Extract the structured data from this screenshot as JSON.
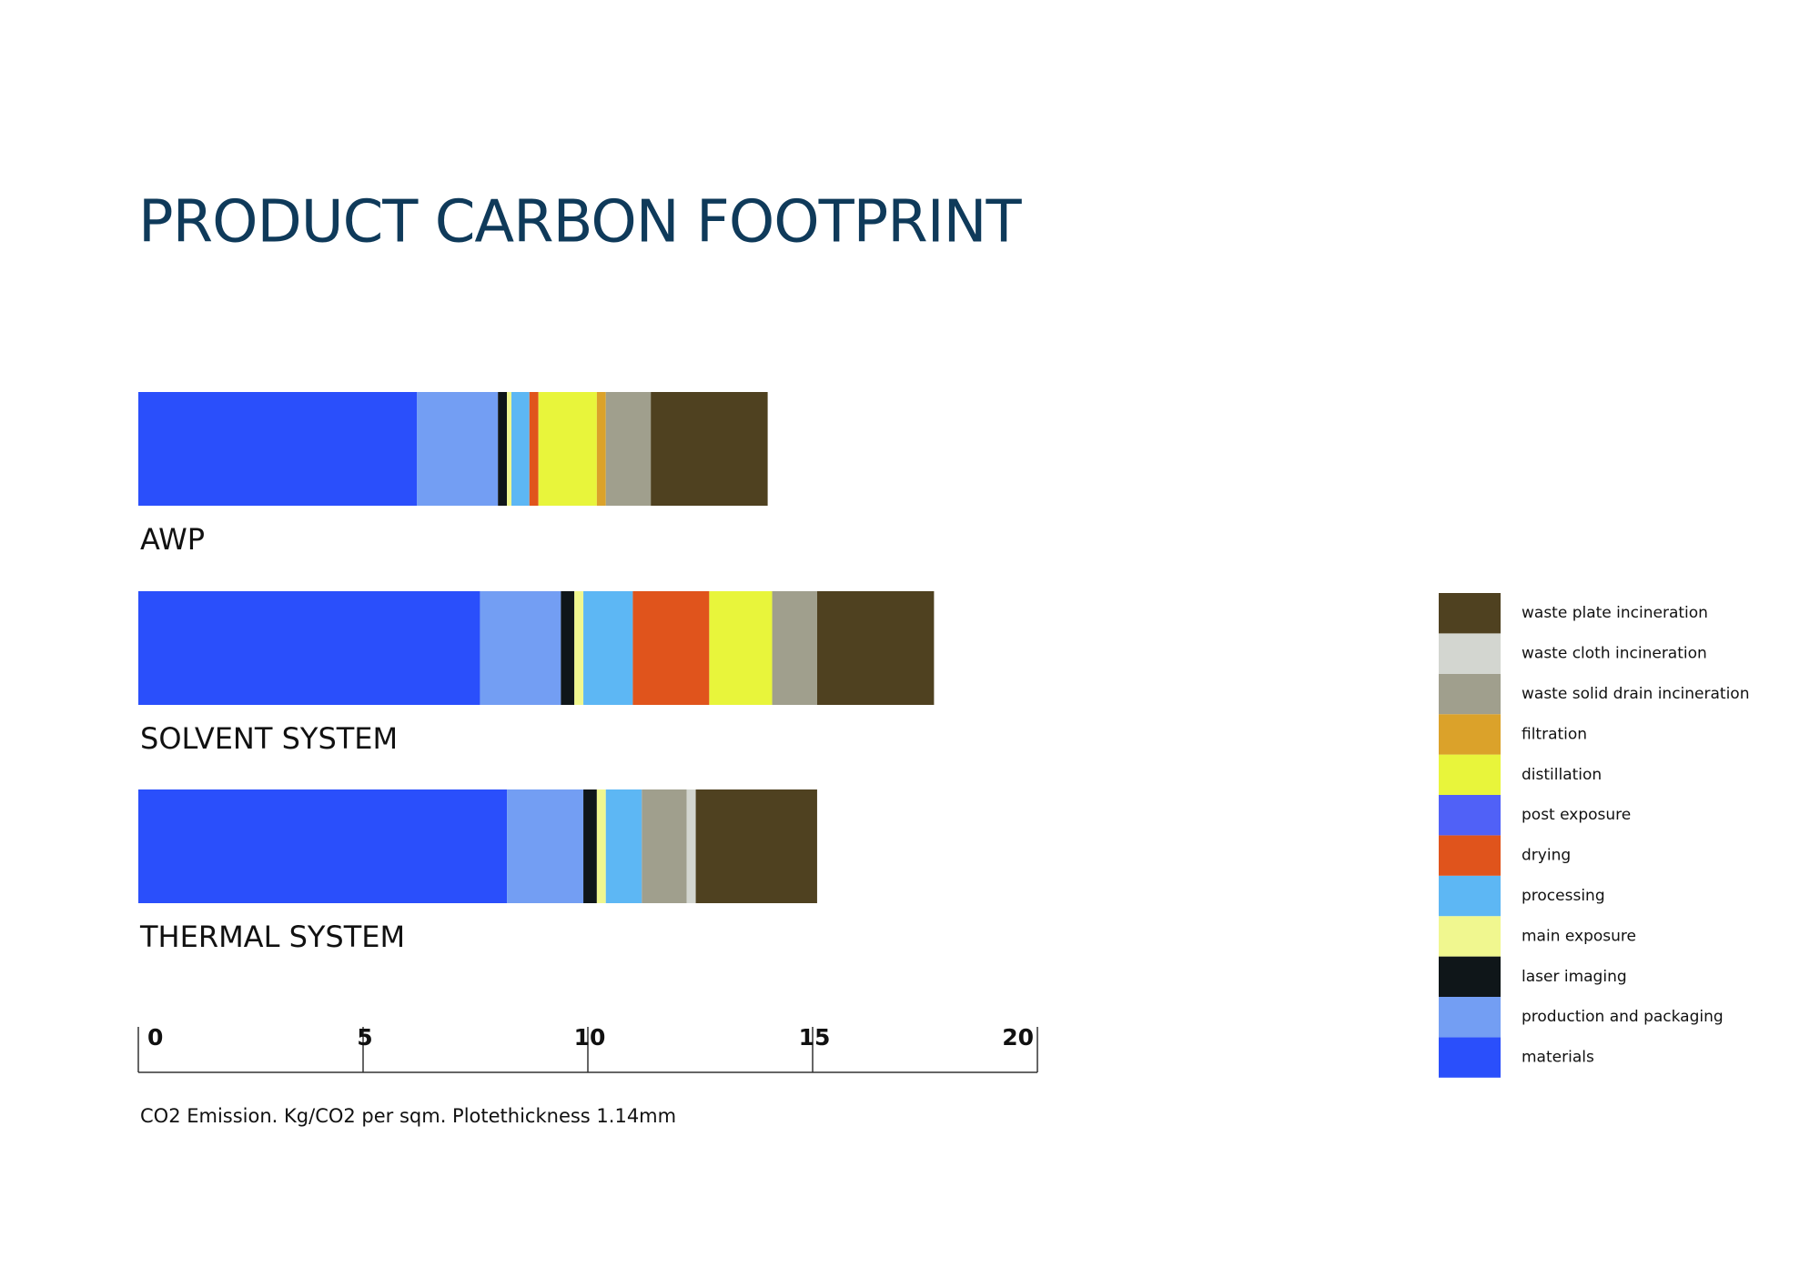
{
  "chart_data": {
    "type": "stacked-barh",
    "title": "PRODUCT CARBON FOOTPRINT",
    "x_label": "CO2 Emission. Kg/CO2 per sqm. Plotethickness 1.14mm",
    "categories": [
      "AWP",
      "SOLVENT SYSTEM",
      "THERMAL SYSTEM"
    ],
    "series": [
      {
        "name": "materials",
        "color": "#2a4ffb",
        "values": [
          6.2,
          7.6,
          8.2
        ]
      },
      {
        "name": "production and packaging",
        "color": "#739ef3",
        "values": [
          1.8,
          1.8,
          1.7
        ]
      },
      {
        "name": "laser imaging",
        "color": "#0f1619",
        "values": [
          0.2,
          0.3,
          0.3
        ]
      },
      {
        "name": "main exposure",
        "color": "#f0f78f",
        "values": [
          0.1,
          0.2,
          0.2
        ]
      },
      {
        "name": "processing",
        "color": "#5db7f4",
        "values": [
          0.4,
          1.1,
          0.8
        ]
      },
      {
        "name": "drying",
        "color": "#e0541c",
        "values": [
          0.2,
          1.7,
          0
        ]
      },
      {
        "name": "post exposure",
        "color": "#5061f7",
        "values": [
          0,
          0,
          0
        ]
      },
      {
        "name": "distillation",
        "color": "#e8f53b",
        "values": [
          1.3,
          1.4,
          0
        ]
      },
      {
        "name": "filtration",
        "color": "#dba22a",
        "values": [
          0.2,
          0,
          0
        ]
      },
      {
        "name": "waste solid drain incineration",
        "color": "#a09f8d",
        "values": [
          1.0,
          1.0,
          1.0
        ]
      },
      {
        "name": "waste cloth incineration",
        "color": "#d3d6d0",
        "values": [
          0,
          0,
          0.2
        ]
      },
      {
        "name": "waste plate incineration",
        "color": "#4f4120",
        "values": [
          2.6,
          2.6,
          2.7
        ]
      }
    ],
    "xlim": [
      0,
      20
    ],
    "xticks": [
      0,
      5,
      10,
      15,
      20
    ],
    "legend": "right"
  }
}
